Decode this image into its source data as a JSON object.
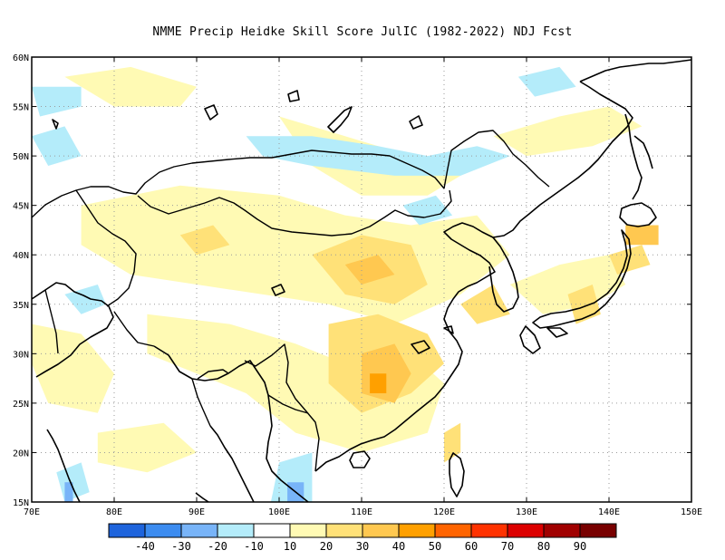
{
  "title": "NMME Precip Heidke Skill Score JulIC (1982-2022) NDJ Fcst",
  "map": {
    "lon_range": [
      70,
      150
    ],
    "lat_range": [
      15,
      60
    ],
    "grid_lines": "dotted",
    "lon_ticks": [
      "70E",
      "80E",
      "90E",
      "100E",
      "110E",
      "120E",
      "130E",
      "140E",
      "150E"
    ],
    "lat_ticks": [
      "15N",
      "20N",
      "25N",
      "30N",
      "35N",
      "40N",
      "45N",
      "50N",
      "55N",
      "60N"
    ]
  },
  "colorbar": {
    "labels": [
      "-40",
      "-30",
      "-20",
      "-10",
      "10",
      "20",
      "30",
      "40",
      "50",
      "60",
      "70",
      "80",
      "90"
    ],
    "colors": [
      "#1e64dc",
      "#3c8cf0",
      "#78b4f8",
      "#b4ecfa",
      "#ffffff",
      "#fffab4",
      "#ffe178",
      "#ffc850",
      "#ffa000",
      "#ff6400",
      "#ff3200",
      "#dc0000",
      "#a00000",
      "#780000"
    ]
  },
  "field_colors": {
    "cool_light": "#b4ecfa",
    "cool_mid": "#78b4f8",
    "warm_light": "#fffab4",
    "warm_mid": "#ffe178",
    "warm_strong": "#ffc850",
    "warm_orange": "#ffa000"
  }
}
